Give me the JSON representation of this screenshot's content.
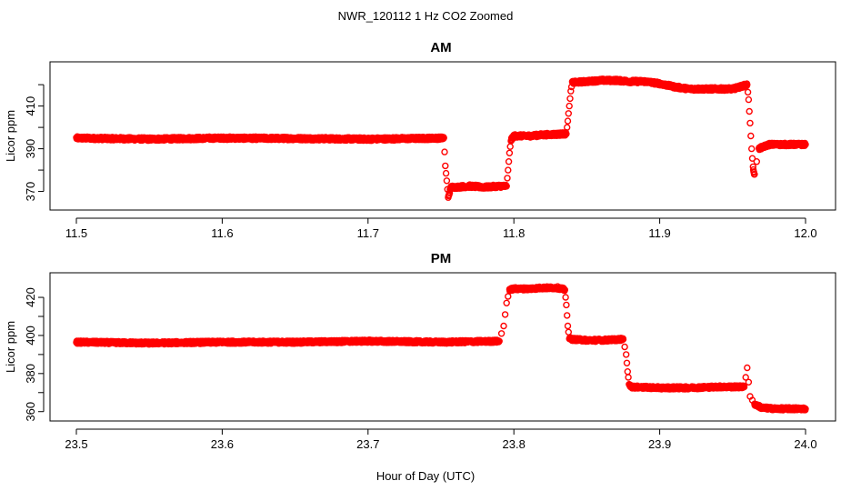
{
  "figure": {
    "title": "NWR_120112  1 Hz CO2 Zoomed",
    "xlabel": "Hour of Day (UTC)"
  },
  "colors": {
    "points": "#ff0000",
    "axes": "#000000",
    "background": "#ffffff"
  },
  "chart_data": [
    {
      "type": "scatter",
      "title": "AM",
      "xlabel": "",
      "ylabel": "Licor ppm",
      "xlim": [
        11.5,
        12.0
      ],
      "ylim": [
        363,
        429
      ],
      "x_ticks": [
        11.5,
        11.6,
        11.7,
        11.8,
        11.9,
        12.0
      ],
      "x_tick_labels": [
        "11.5",
        "11.6",
        "11.7",
        "11.8",
        "11.9",
        "12.0"
      ],
      "y_ticks": [
        370,
        380,
        390,
        400,
        410,
        420
      ],
      "y_tick_labels": [
        "370",
        "",
        "390",
        "",
        "410",
        ""
      ],
      "grid": false,
      "marker": "open-circle",
      "series": [
        {
          "color": "#ff0000",
          "x": [
            11.5,
            11.55,
            11.6,
            11.65,
            11.7,
            11.752,
            11.753,
            11.754,
            11.755,
            11.756,
            11.757,
            11.76,
            11.77,
            11.78,
            11.79,
            11.795,
            11.796,
            11.797,
            11.798,
            11.8,
            11.81,
            11.82,
            11.836,
            11.837,
            11.838,
            11.839,
            11.84,
            11.85,
            11.86,
            11.87,
            11.88,
            11.89,
            11.9,
            11.91,
            11.92,
            11.93,
            11.94,
            11.95,
            11.96,
            11.961,
            11.962,
            11.963,
            11.964,
            11.965,
            11.968,
            11.975,
            11.985,
            12.0
          ],
          "y": [
            395,
            394.5,
            395,
            394.8,
            394.5,
            395,
            382,
            375,
            367,
            370,
            372,
            372,
            372.5,
            372,
            372.5,
            372.5,
            380,
            388,
            394,
            396,
            396,
            396.5,
            397,
            403,
            410,
            417,
            421,
            421.5,
            422,
            422,
            421.5,
            421.5,
            420.5,
            419,
            418,
            418,
            418,
            418,
            420,
            413,
            402,
            390,
            381,
            378,
            390,
            392,
            392,
            392
          ]
        }
      ]
    },
    {
      "type": "scatter",
      "title": "PM",
      "xlabel": "",
      "ylabel": "Licor ppm",
      "xlim": [
        23.5,
        24.0
      ],
      "ylim": [
        357,
        431
      ],
      "x_ticks": [
        23.5,
        23.6,
        23.7,
        23.8,
        23.9,
        24.0
      ],
      "x_tick_labels": [
        "23.5",
        "23.6",
        "23.7",
        "23.8",
        "23.9",
        "24.0"
      ],
      "y_ticks": [
        360,
        370,
        380,
        390,
        400,
        410,
        420
      ],
      "y_tick_labels": [
        "360",
        "",
        "380",
        "",
        "400",
        "",
        "420"
      ],
      "grid": false,
      "marker": "open-circle",
      "series": [
        {
          "color": "#ff0000",
          "x": [
            23.5,
            23.55,
            23.6,
            23.65,
            23.7,
            23.75,
            23.79,
            23.793,
            23.795,
            23.797,
            23.8,
            23.81,
            23.82,
            23.83,
            23.835,
            23.836,
            23.837,
            23.838,
            23.84,
            23.85,
            23.86,
            23.875,
            23.877,
            23.878,
            23.879,
            23.88,
            23.9,
            23.92,
            23.94,
            23.958,
            23.96,
            23.962,
            23.965,
            23.97,
            23.98,
            23.99,
            24.0
          ],
          "y": [
            396.5,
            396,
            396.5,
            396.5,
            397,
            396.5,
            397,
            405,
            417,
            424,
            424.5,
            424.5,
            425,
            425,
            424,
            416,
            405,
            398.5,
            398,
            397.5,
            397.5,
            398,
            390,
            381,
            375,
            373,
            372.5,
            372.5,
            373,
            373,
            383,
            368,
            364,
            362,
            361.5,
            361.5,
            361.5
          ]
        }
      ]
    }
  ]
}
